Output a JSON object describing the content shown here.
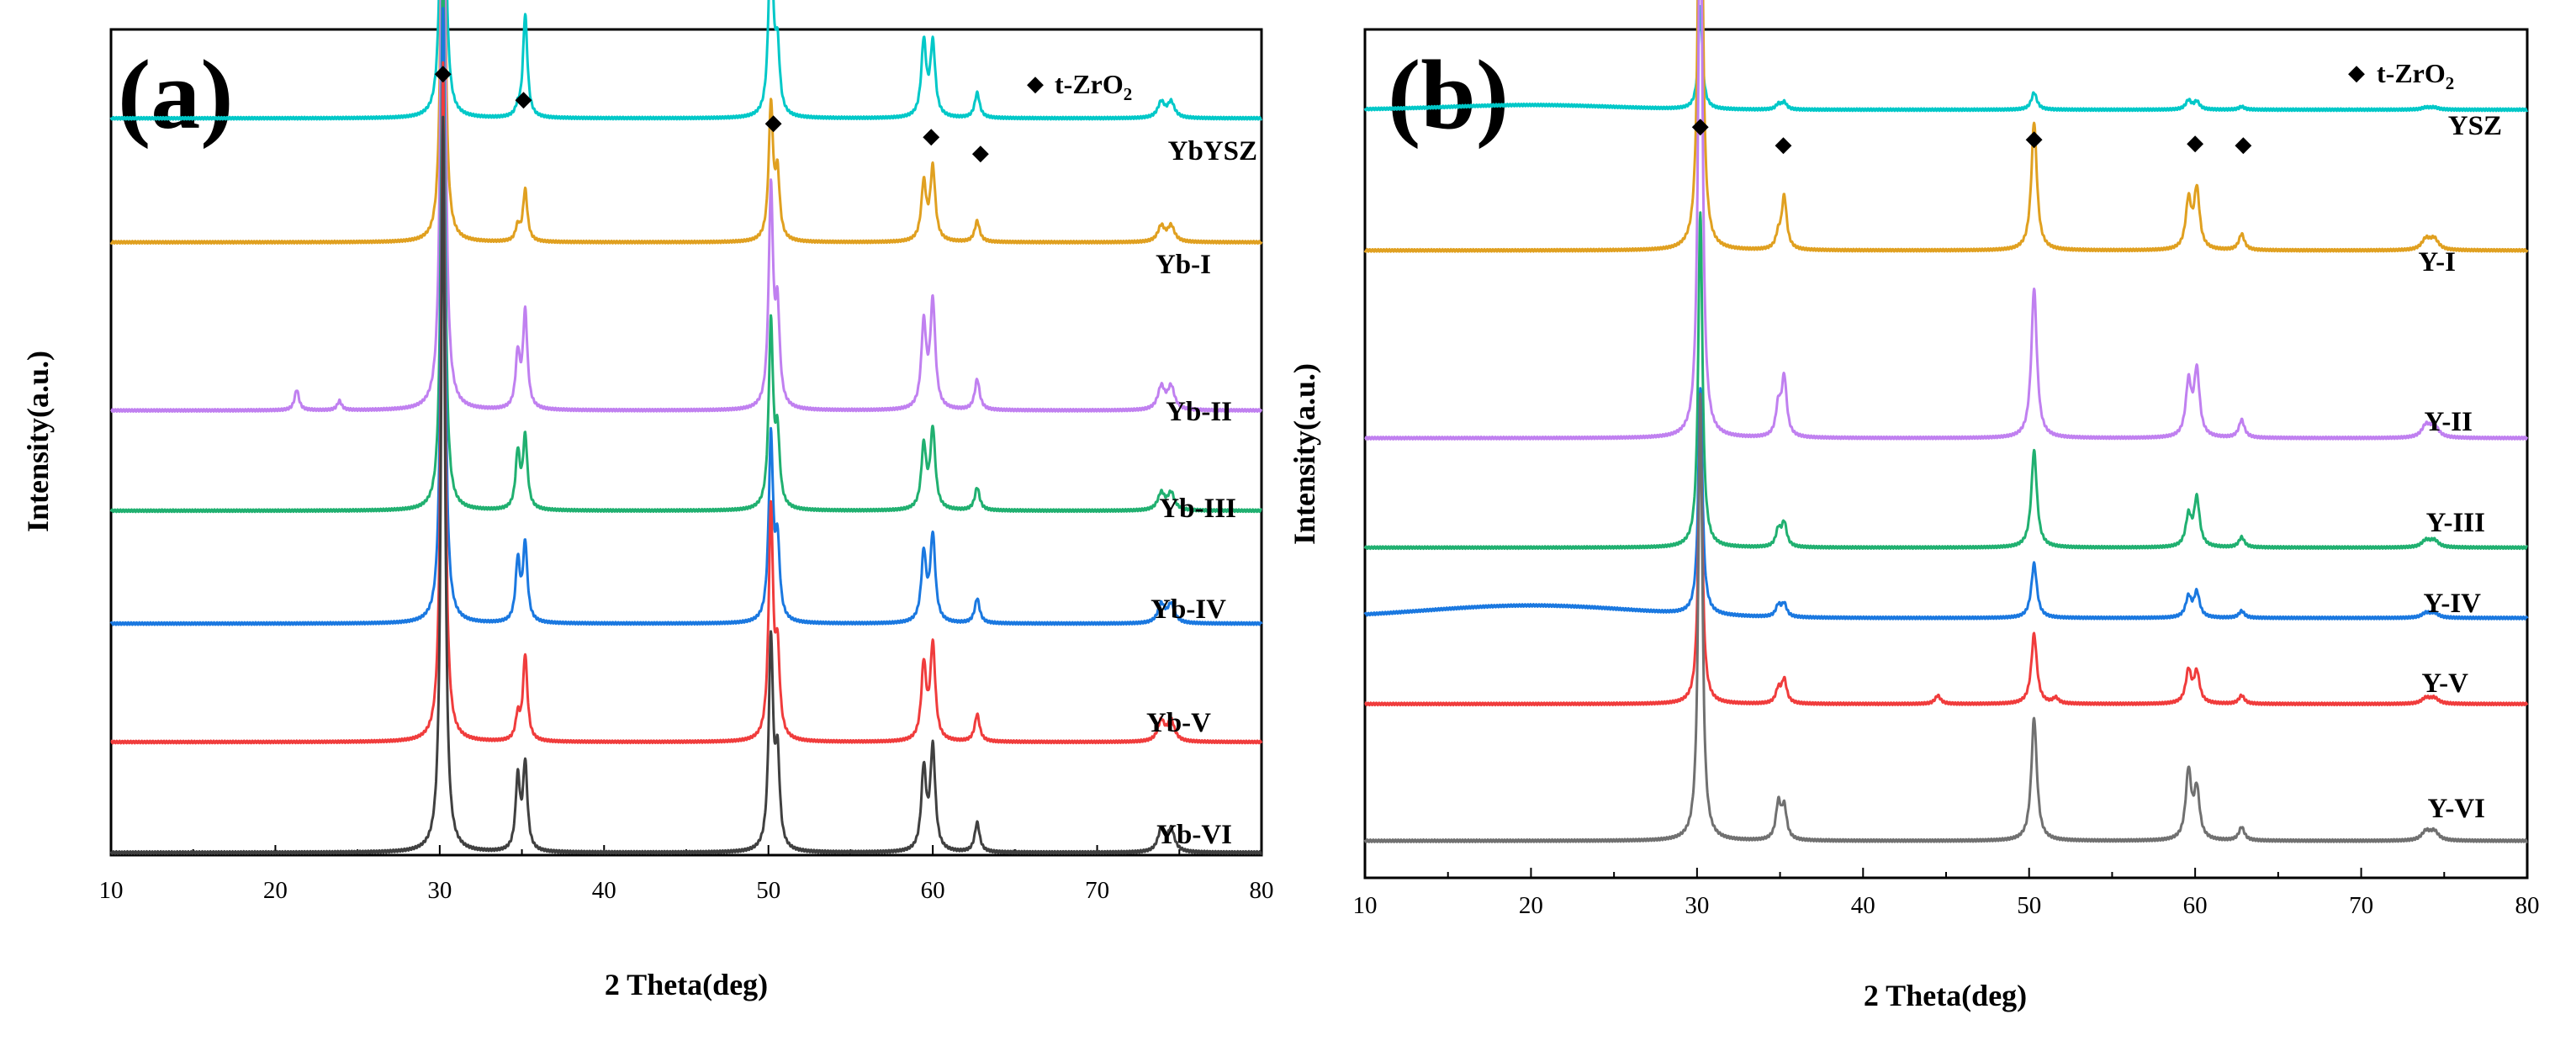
{
  "chart_data": [
    {
      "type": "line",
      "panel_label": "(a)",
      "xlabel": "2 Theta(deg)",
      "ylabel": "Intensity(a.u.)",
      "xlim": [
        10,
        80
      ],
      "xticks": [
        10,
        20,
        30,
        40,
        50,
        60,
        70,
        80
      ],
      "legend": {
        "symbol": "◆",
        "text": "t-ZrO",
        "subscript": "2",
        "placement": "top-right"
      },
      "peak_marker_symbol": "◆",
      "marked_peaks": [
        30.2,
        35.1,
        50.3,
        59.9,
        62.9
      ],
      "peaks": [
        {
          "pos": 30.2,
          "width": 0.14,
          "rel": 1.0
        },
        {
          "pos": 34.75,
          "width": 0.16,
          "rel": 0.07
        },
        {
          "pos": 35.2,
          "width": 0.16,
          "rel": 0.09
        },
        {
          "pos": 50.15,
          "width": 0.16,
          "rel": 0.26
        },
        {
          "pos": 50.55,
          "width": 0.16,
          "rel": 0.12
        },
        {
          "pos": 59.45,
          "width": 0.18,
          "rel": 0.11
        },
        {
          "pos": 60.0,
          "width": 0.18,
          "rel": 0.14
        },
        {
          "pos": 62.7,
          "width": 0.18,
          "rel": 0.04
        },
        {
          "pos": 73.9,
          "width": 0.25,
          "rel": 0.03
        },
        {
          "pos": 74.5,
          "width": 0.25,
          "rel": 0.03
        }
      ],
      "series": [
        {
          "name": "YbYSZ",
          "color": "#00c8c8",
          "baseline": 0.93,
          "main_peak": 0.66,
          "scale": {
            "34.75": 0.2,
            "35.2": 2.2,
            "50.15": 1.45,
            "59.45": 1.3,
            "60.0": 1.9,
            "62.7": 1.2
          }
        },
        {
          "name": "Yb-I",
          "color": "#e0a020",
          "baseline": 0.773,
          "main_peak": 0.66,
          "scale": {
            "34.75": 0.4,
            "35.2": 1.1,
            "50.15": 1.0,
            "60.0": 1.3
          }
        },
        {
          "name": "Yb-II",
          "color": "#c080f0",
          "baseline": 0.56,
          "main_peak": 0.965,
          "scale": {
            "35.2": 1.4,
            "50.15": 1.1
          },
          "extra_peaks": [
            {
              "pos": 21.3,
              "width": 0.16,
              "rel": 0.027
            },
            {
              "pos": 23.9,
              "width": 0.16,
              "rel": 0.012
            }
          ]
        },
        {
          "name": "Yb-III",
          "color": "#20b070",
          "baseline": 0.433,
          "main_peak": 0.72,
          "scale": {
            "34.75": 1.4,
            "35.2": 1.4,
            "50.15": 1.25
          }
        },
        {
          "name": "Yb-IV",
          "color": "#1a78e0",
          "baseline": 0.29,
          "main_peak": 0.78,
          "scale": {
            "34.75": 1.4,
            "35.2": 1.4,
            "50.15": 1.15
          }
        },
        {
          "name": "Yb-V",
          "color": "#f03c3c",
          "baseline": 0.14,
          "main_peak": 0.86,
          "scale": {
            "34.75": 0.5,
            "35.2": 1.4,
            "50.15": 1.3,
            "60.0": 1.3
          }
        },
        {
          "name": "Yb-VI",
          "color": "#404040",
          "baseline": 0.0,
          "main_peak": 0.93,
          "scale": {
            "34.75": 1.4,
            "35.2": 1.3,
            "50.15": 1.1
          }
        }
      ]
    },
    {
      "type": "line",
      "panel_label": "(b)",
      "xlabel": "2 Theta(deg)",
      "ylabel": "Intensity(a.u.)",
      "xlim": [
        10,
        80
      ],
      "xticks": [
        10,
        20,
        30,
        40,
        50,
        60,
        70,
        80
      ],
      "legend": {
        "symbol": "◆",
        "text": "t-ZrO",
        "subscript": "2",
        "placement": "top-right"
      },
      "peak_marker_symbol": "◆",
      "marked_peaks": [
        30.2,
        35.2,
        50.3,
        60.0,
        62.9
      ],
      "peaks": [
        {
          "pos": 30.2,
          "width": 0.15,
          "rel": 1.0
        },
        {
          "pos": 34.9,
          "width": 0.18,
          "rel": 0.05
        },
        {
          "pos": 35.25,
          "width": 0.18,
          "rel": 0.07
        },
        {
          "pos": 50.3,
          "width": 0.2,
          "rel": 0.24
        },
        {
          "pos": 59.6,
          "width": 0.2,
          "rel": 0.09
        },
        {
          "pos": 60.1,
          "width": 0.2,
          "rel": 0.11
        },
        {
          "pos": 62.8,
          "width": 0.2,
          "rel": 0.03
        },
        {
          "pos": 73.9,
          "width": 0.3,
          "rel": 0.02
        },
        {
          "pos": 74.4,
          "width": 0.3,
          "rel": 0.02
        }
      ],
      "series": [
        {
          "name": "YSZ",
          "color": "#00c8c8",
          "baseline": 0.935,
          "main_peak": 0.13,
          "scale": {
            "50.3": 0.7,
            "60.1": 0.7
          },
          "hump": {
            "center": 20,
            "width": 7,
            "height": 0.006
          }
        },
        {
          "name": "Y-I",
          "color": "#e0a020",
          "baseline": 0.755,
          "main_peak": 0.685,
          "scale": {
            "34.9": 0.5,
            "35.25": 1.4
          }
        },
        {
          "name": "Y-II",
          "color": "#c080f0",
          "baseline": 0.515,
          "main_peak": 0.76,
          "scale": {
            "35.25": 1.4,
            "50.3": 1.05
          }
        },
        {
          "name": "Y-III",
          "color": "#20b070",
          "baseline": 0.375,
          "main_peak": 0.43,
          "scale": {
            "50.3": 1.2,
            "60.1": 1.3
          }
        },
        {
          "name": "Y-IV",
          "color": "#1a78e0",
          "baseline": 0.285,
          "main_peak": 0.29,
          "scale": {
            "35.25": 0.8
          },
          "hump": {
            "center": 20,
            "width": 9,
            "height": 0.016
          }
        },
        {
          "name": "Y-V",
          "color": "#f03c3c",
          "baseline": 0.175,
          "main_peak": 0.355,
          "scale": {
            "35.25": 1.2,
            "50.3": 1.05,
            "59.6": 1.3
          },
          "extra_peaks": [
            {
              "pos": 44.5,
              "width": 0.2,
              "rel": 0.03
            },
            {
              "pos": 51.6,
              "width": 0.2,
              "rel": 0.02
            }
          ]
        },
        {
          "name": "Y-VI",
          "color": "#707070",
          "baseline": 0.0,
          "main_peak": 0.57,
          "scale": {
            "34.9": 1.6,
            "50.3": 1.15,
            "59.6": 1.7
          }
        }
      ]
    }
  ]
}
